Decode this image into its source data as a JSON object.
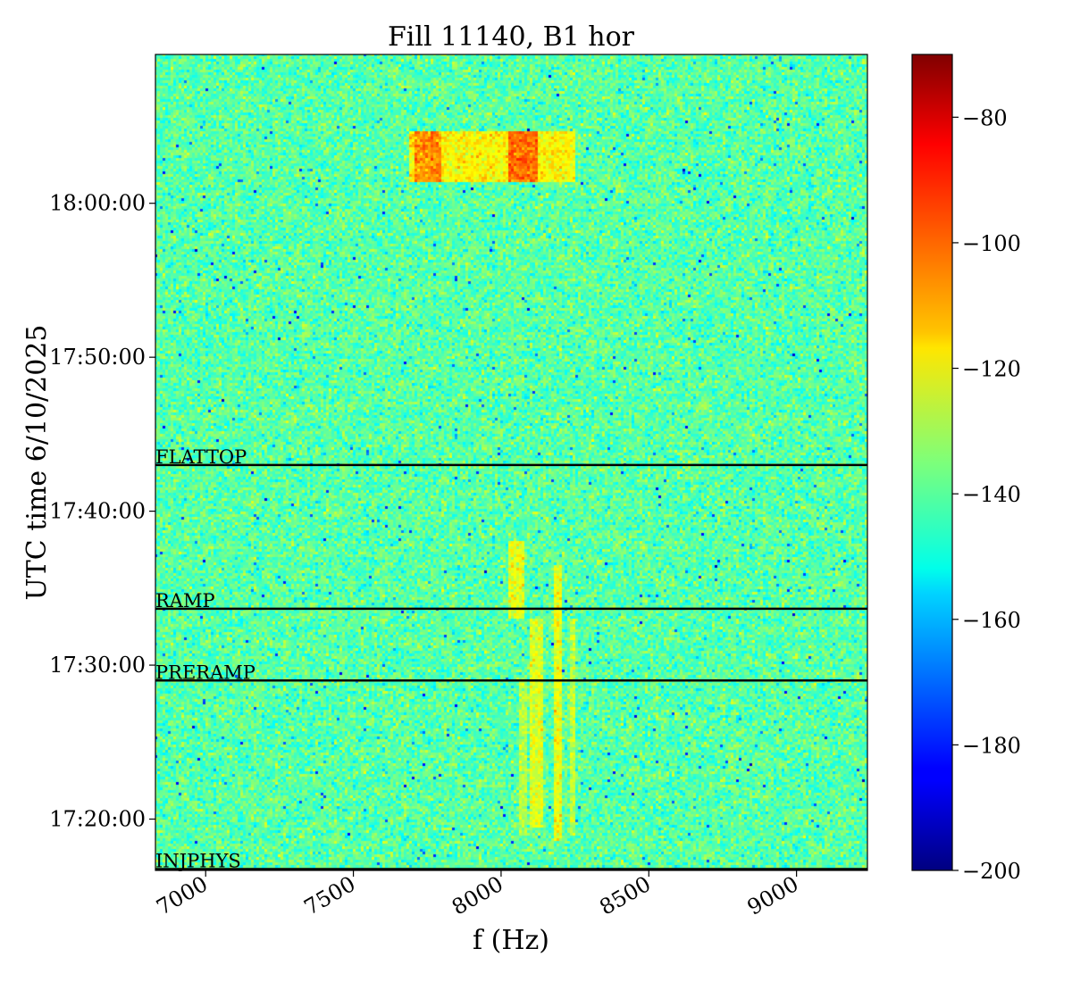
{
  "chart_data": {
    "type": "heatmap",
    "title": "Fill 11140, B1 hor",
    "xlabel": "f (Hz)",
    "ylabel": "UTC time 6/10/2025",
    "colormap": "jet",
    "xlim": [
      6830,
      9240
    ],
    "ylim": [
      "17:16:40",
      "18:09:40"
    ],
    "x_ticks": [
      7000,
      7500,
      8000,
      8500,
      9000
    ],
    "x_tick_labels": [
      "7000",
      "7500",
      "8000",
      "8500",
      "9000"
    ],
    "y_ticks": [
      "17:20:00",
      "17:30:00",
      "17:40:00",
      "17:50:00",
      "18:00:00"
    ],
    "y_tick_labels": [
      "17:20:00",
      "17:30:00",
      "17:40:00",
      "17:50:00",
      "18:00:00"
    ],
    "colorbar": {
      "range": [
        -200,
        -70
      ],
      "ticks": [
        -80,
        -100,
        -120,
        -140,
        -160,
        -180,
        -200
      ],
      "tick_labels": [
        "−80",
        "−100",
        "−120",
        "−140",
        "−160",
        "−180",
        "−200"
      ]
    },
    "background_level": -140,
    "phase_markers": [
      {
        "label": "FLATTOP",
        "time": "17:43:00"
      },
      {
        "label": "RAMP",
        "time": "17:33:40"
      },
      {
        "label": "PRERAMP",
        "time": "17:29:00"
      },
      {
        "label": "INJPHYS",
        "time": "17:16:40"
      }
    ],
    "features": [
      {
        "f_start": 7690,
        "f_end": 8250,
        "t_start": "18:01:20",
        "t_end": "18:04:40",
        "level": -118
      },
      {
        "f_start": 7710,
        "f_end": 7800,
        "t_start": "18:01:20",
        "t_end": "18:04:40",
        "level": -105
      },
      {
        "f_start": 8030,
        "f_end": 8130,
        "t_start": "18:01:20",
        "t_end": "18:04:40",
        "level": -100
      },
      {
        "f_start": 8030,
        "f_end": 8080,
        "t_start": "17:33:00",
        "t_end": "17:38:00",
        "level": -122
      },
      {
        "f_start": 8100,
        "f_end": 8140,
        "t_start": "17:19:30",
        "t_end": "17:33:00",
        "level": -123
      },
      {
        "f_start": 8180,
        "f_end": 8205,
        "t_start": "17:18:30",
        "t_end": "17:36:30",
        "level": -121
      },
      {
        "f_start": 8235,
        "f_end": 8255,
        "t_start": "17:19:00",
        "t_end": "17:33:00",
        "level": -127
      },
      {
        "f_start": 8060,
        "f_end": 8090,
        "t_start": "17:19:00",
        "t_end": "17:29:00",
        "level": -128
      }
    ]
  }
}
